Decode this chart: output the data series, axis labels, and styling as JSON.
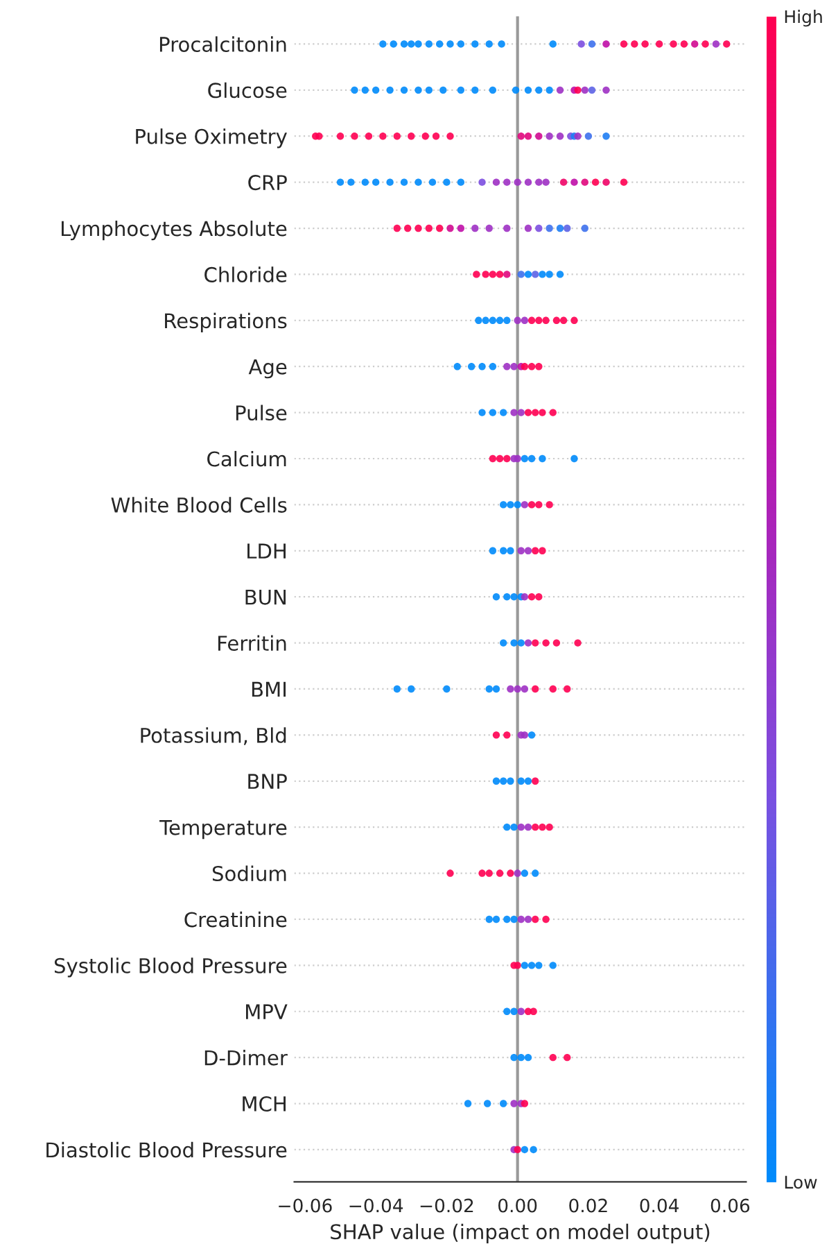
{
  "chart_data": {
    "type": "scatter",
    "orientation": "horizontal",
    "xlabel": "SHAP value (impact on model output)",
    "categories": [
      "Procalcitonin",
      "Glucose",
      "Pulse Oximetry",
      "CRP",
      "Lymphocytes Absolute",
      "Chloride",
      "Respirations",
      "Age",
      "Pulse",
      "Calcium",
      "White Blood Cells",
      "LDH",
      "BUN",
      "Ferritin",
      "BMI",
      "Potassium, Bld",
      "BNP",
      "Temperature",
      "Sodium",
      "Creatinine",
      "Systolic Blood Pressure",
      "MPV",
      "D-Dimer",
      "MCH",
      "Diastolic Blood Pressure"
    ],
    "series": [
      {
        "x": [
          "Procalcitonin",
          "Procalcitonin",
          "Procalcitonin",
          "Procalcitonin",
          "Procalcitonin",
          "Procalcitonin",
          "Procalcitonin",
          "Procalcitonin",
          "Procalcitonin",
          "Procalcitonin",
          "Procalcitonin",
          "Procalcitonin",
          "Procalcitonin",
          "Procalcitonin",
          "Procalcitonin",
          "Procalcitonin",
          "Procalcitonin",
          "Procalcitonin",
          "Procalcitonin",
          "Procalcitonin",
          "Procalcitonin",
          "Procalcitonin",
          "Procalcitonin",
          "Procalcitonin",
          "Procalcitonin",
          "Procalcitonin"
        ],
        "values": [
          -0.038,
          -0.035,
          -0.032,
          -0.03,
          -0.028,
          -0.025,
          -0.022,
          -0.019,
          -0.016,
          -0.012,
          -0.008,
          -0.0045,
          0.01,
          0.018,
          0.021,
          0.025,
          0.03,
          0.033,
          0.036,
          0.04,
          0.044,
          0.047,
          0.05,
          0.053,
          0.056,
          0.059
        ],
        "colors": [
          "#008bfb",
          "#008bfb",
          "#008bfb",
          "#008bfb",
          "#008bfb",
          "#008bfb",
          "#008bfb",
          "#008bfb",
          "#008bfb",
          "#008bfb",
          "#008bfb",
          "#008bfb",
          "#008bfb",
          "#7c4fe0",
          "#3e71ed",
          "#c010a8",
          "#ff0052",
          "#ff0052",
          "#ff0052",
          "#ff0052",
          "#ff0052",
          "#ff0052",
          "#d20b91",
          "#ff0052",
          "#9e31c4",
          "#ff0052"
        ]
      },
      {
        "x": [
          "Glucose",
          "Glucose",
          "Glucose",
          "Glucose",
          "Glucose",
          "Glucose",
          "Glucose",
          "Glucose",
          "Glucose",
          "Glucose",
          "Glucose",
          "Glucose",
          "Glucose",
          "Glucose",
          "Glucose",
          "Glucose",
          "Glucose",
          "Glucose",
          "Glucose",
          "Glucose",
          "Glucose"
        ],
        "values": [
          -0.046,
          -0.043,
          -0.04,
          -0.036,
          -0.032,
          -0.028,
          -0.025,
          -0.021,
          -0.016,
          -0.012,
          -0.007,
          -0.0005,
          0.003,
          0.006,
          0.009,
          0.012,
          0.016,
          0.017,
          0.019,
          0.021,
          0.025
        ],
        "colors": [
          "#008bfb",
          "#008bfb",
          "#008bfb",
          "#008bfb",
          "#008bfb",
          "#008bfb",
          "#008bfb",
          "#008bfb",
          "#008bfb",
          "#008bfb",
          "#008bfb",
          "#008bfb",
          "#008bfb",
          "#008bfb",
          "#008bfb",
          "#9e31c4",
          "#c010a8",
          "#ff0052",
          "#9e31c4",
          "#5d63e6",
          "#9e31c4"
        ]
      },
      {
        "x": [
          "Pulse Oximetry",
          "Pulse Oximetry",
          "Pulse Oximetry",
          "Pulse Oximetry",
          "Pulse Oximetry",
          "Pulse Oximetry",
          "Pulse Oximetry",
          "Pulse Oximetry",
          "Pulse Oximetry",
          "Pulse Oximetry",
          "Pulse Oximetry",
          "Pulse Oximetry",
          "Pulse Oximetry",
          "Pulse Oximetry",
          "Pulse Oximetry",
          "Pulse Oximetry",
          "Pulse Oximetry",
          "Pulse Oximetry",
          "Pulse Oximetry",
          "Pulse Oximetry",
          "Pulse Oximetry"
        ],
        "values": [
          -0.057,
          -0.056,
          -0.05,
          -0.046,
          -0.042,
          -0.038,
          -0.034,
          -0.03,
          -0.026,
          -0.023,
          -0.019,
          0.001,
          0.003,
          0.006,
          0.009,
          0.012,
          0.015,
          0.016,
          0.017,
          0.02,
          0.025
        ],
        "colors": [
          "#ff0052",
          "#ff0052",
          "#ff0052",
          "#ff0052",
          "#ff0052",
          "#ff0052",
          "#ff0052",
          "#ff0052",
          "#ff0052",
          "#ff0052",
          "#ff0052",
          "#e1087d",
          "#e1087d",
          "#d20b91",
          "#9e31c4",
          "#9e31c4",
          "#7c4fe0",
          "#1f7ef4",
          "#9e31c4",
          "#3e71ed",
          "#1f7ef4"
        ]
      },
      {
        "x": [
          "CRP",
          "CRP",
          "CRP",
          "CRP",
          "CRP",
          "CRP",
          "CRP",
          "CRP",
          "CRP",
          "CRP",
          "CRP",
          "CRP",
          "CRP",
          "CRP",
          "CRP",
          "CRP",
          "CRP",
          "CRP",
          "CRP",
          "CRP",
          "CRP",
          "CRP",
          "CRP"
        ],
        "values": [
          -0.05,
          -0.047,
          -0.043,
          -0.04,
          -0.036,
          -0.032,
          -0.028,
          -0.024,
          -0.02,
          -0.016,
          -0.01,
          -0.006,
          -0.003,
          0.0,
          0.003,
          0.006,
          0.008,
          0.013,
          0.016,
          0.019,
          0.022,
          0.025,
          0.03
        ],
        "colors": [
          "#008bfb",
          "#008bfb",
          "#008bfb",
          "#008bfb",
          "#008bfb",
          "#008bfb",
          "#008bfb",
          "#008bfb",
          "#008bfb",
          "#008bfb",
          "#7c4fe0",
          "#9e31c4",
          "#9e31c4",
          "#9e31c4",
          "#9e31c4",
          "#9e31c4",
          "#9e31c4",
          "#f00467",
          "#c010a8",
          "#e1087d",
          "#ff0052",
          "#f00467",
          "#ff0052"
        ]
      },
      {
        "x": [
          "Lymphocytes Absolute",
          "Lymphocytes Absolute",
          "Lymphocytes Absolute",
          "Lymphocytes Absolute",
          "Lymphocytes Absolute",
          "Lymphocytes Absolute",
          "Lymphocytes Absolute",
          "Lymphocytes Absolute",
          "Lymphocytes Absolute",
          "Lymphocytes Absolute",
          "Lymphocytes Absolute",
          "Lymphocytes Absolute",
          "Lymphocytes Absolute",
          "Lymphocytes Absolute",
          "Lymphocytes Absolute",
          "Lymphocytes Absolute"
        ],
        "values": [
          -0.034,
          -0.031,
          -0.028,
          -0.025,
          -0.022,
          -0.019,
          -0.016,
          -0.012,
          -0.008,
          -0.003,
          0.003,
          0.006,
          0.009,
          0.012,
          0.014,
          0.019
        ],
        "colors": [
          "#ff0052",
          "#ff0052",
          "#ff0052",
          "#ff0052",
          "#ff0052",
          "#d20b91",
          "#c010a8",
          "#9e31c4",
          "#9e31c4",
          "#9e31c4",
          "#9e31c4",
          "#7c4fe0",
          "#3e71ed",
          "#1f7ef4",
          "#5d63e6",
          "#3e71ed"
        ]
      },
      {
        "x": [
          "Chloride",
          "Chloride",
          "Chloride",
          "Chloride",
          "Chloride",
          "Chloride",
          "Chloride",
          "Chloride",
          "Chloride",
          "Chloride",
          "Chloride"
        ],
        "values": [
          -0.0116,
          -0.009,
          -0.007,
          -0.005,
          -0.003,
          0.001,
          0.003,
          0.005,
          0.007,
          0.009,
          0.012
        ],
        "colors": [
          "#ff0052",
          "#ff0052",
          "#ff0052",
          "#ff0052",
          "#e1087d",
          "#3e71ed",
          "#008bfb",
          "#5d63e6",
          "#008bfb",
          "#008bfb",
          "#008bfb"
        ]
      },
      {
        "x": [
          "Respirations",
          "Respirations",
          "Respirations",
          "Respirations",
          "Respirations",
          "Respirations",
          "Respirations",
          "Respirations",
          "Respirations",
          "Respirations",
          "Respirations",
          "Respirations",
          "Respirations"
        ],
        "values": [
          -0.011,
          -0.009,
          -0.007,
          -0.005,
          -0.003,
          0.0,
          0.002,
          0.004,
          0.006,
          0.008,
          0.011,
          0.013,
          0.016
        ],
        "colors": [
          "#008bfb",
          "#008bfb",
          "#008bfb",
          "#008bfb",
          "#008bfb",
          "#9e31c4",
          "#9e31c4",
          "#ff0052",
          "#ff0052",
          "#ff0052",
          "#ff0052",
          "#ff0052",
          "#ff0052"
        ]
      },
      {
        "x": [
          "Age",
          "Age",
          "Age",
          "Age",
          "Age",
          "Age",
          "Age",
          "Age",
          "Age",
          "Age"
        ],
        "values": [
          -0.017,
          -0.013,
          -0.01,
          -0.007,
          -0.003,
          -0.001,
          0.001,
          0.002,
          0.004,
          0.006
        ],
        "colors": [
          "#008bfb",
          "#008bfb",
          "#008bfb",
          "#008bfb",
          "#9e31c4",
          "#9e31c4",
          "#c010a8",
          "#ff0052",
          "#ff0052",
          "#ff0052"
        ]
      },
      {
        "x": [
          "Pulse",
          "Pulse",
          "Pulse",
          "Pulse",
          "Pulse",
          "Pulse",
          "Pulse",
          "Pulse",
          "Pulse"
        ],
        "values": [
          -0.01,
          -0.007,
          -0.004,
          -0.001,
          0.001,
          0.003,
          0.005,
          0.007,
          0.01
        ],
        "colors": [
          "#008bfb",
          "#008bfb",
          "#008bfb",
          "#9e31c4",
          "#9e31c4",
          "#ff0052",
          "#ff0052",
          "#ff0052",
          "#ff0052"
        ]
      },
      {
        "x": [
          "Calcium",
          "Calcium",
          "Calcium",
          "Calcium",
          "Calcium",
          "Calcium",
          "Calcium",
          "Calcium",
          "Calcium"
        ],
        "values": [
          -0.007,
          -0.005,
          -0.003,
          -0.001,
          0.0,
          0.002,
          0.004,
          0.007,
          0.016
        ],
        "colors": [
          "#ff0052",
          "#ff0052",
          "#ff0052",
          "#9e31c4",
          "#9e31c4",
          "#008bfb",
          "#008bfb",
          "#008bfb",
          "#008bfb"
        ]
      },
      {
        "x": [
          "White Blood Cells",
          "White Blood Cells",
          "White Blood Cells",
          "White Blood Cells",
          "White Blood Cells",
          "White Blood Cells",
          "White Blood Cells"
        ],
        "values": [
          -0.004,
          -0.002,
          0.0,
          0.002,
          0.004,
          0.006,
          0.009
        ],
        "colors": [
          "#008bfb",
          "#008bfb",
          "#008bfb",
          "#9e31c4",
          "#ff0052",
          "#ff0052",
          "#ff0052"
        ]
      },
      {
        "x": [
          "LDH",
          "LDH",
          "LDH",
          "LDH",
          "LDH",
          "LDH",
          "LDH"
        ],
        "values": [
          -0.007,
          -0.004,
          -0.002,
          0.001,
          0.003,
          0.005,
          0.007
        ],
        "colors": [
          "#008bfb",
          "#008bfb",
          "#008bfb",
          "#9e31c4",
          "#9e31c4",
          "#ff0052",
          "#ff0052"
        ]
      },
      {
        "x": [
          "BUN",
          "BUN",
          "BUN",
          "BUN",
          "BUN",
          "BUN",
          "BUN"
        ],
        "values": [
          -0.006,
          -0.003,
          -0.001,
          0.001,
          0.002,
          0.004,
          0.006
        ],
        "colors": [
          "#008bfb",
          "#008bfb",
          "#008bfb",
          "#008bfb",
          "#9e31c4",
          "#ff0052",
          "#ff0052"
        ]
      },
      {
        "x": [
          "Ferritin",
          "Ferritin",
          "Ferritin",
          "Ferritin",
          "Ferritin",
          "Ferritin",
          "Ferritin",
          "Ferritin"
        ],
        "values": [
          -0.004,
          -0.001,
          0.001,
          0.003,
          0.005,
          0.008,
          0.011,
          0.017
        ],
        "colors": [
          "#008bfb",
          "#008bfb",
          "#008bfb",
          "#9e31c4",
          "#ff0052",
          "#ff0052",
          "#ff0052",
          "#ff0052"
        ]
      },
      {
        "x": [
          "BMI",
          "BMI",
          "BMI",
          "BMI",
          "BMI",
          "BMI",
          "BMI",
          "BMI",
          "BMI",
          "BMI",
          "BMI"
        ],
        "values": [
          -0.034,
          -0.03,
          -0.02,
          -0.008,
          -0.006,
          -0.002,
          0.0,
          0.002,
          0.005,
          0.01,
          0.014
        ],
        "colors": [
          "#008bfb",
          "#008bfb",
          "#008bfb",
          "#008bfb",
          "#008bfb",
          "#9e31c4",
          "#9e31c4",
          "#9e31c4",
          "#ff0052",
          "#ff0052",
          "#ff0052"
        ]
      },
      {
        "x": [
          "Potassium, Bld",
          "Potassium, Bld",
          "Potassium, Bld",
          "Potassium, Bld",
          "Potassium, Bld"
        ],
        "values": [
          -0.006,
          -0.003,
          0.001,
          0.002,
          0.004
        ],
        "colors": [
          "#ff0052",
          "#ff0052",
          "#9e31c4",
          "#9e31c4",
          "#008bfb"
        ]
      },
      {
        "x": [
          "BNP",
          "BNP",
          "BNP",
          "BNP",
          "BNP",
          "BNP"
        ],
        "values": [
          -0.006,
          -0.004,
          -0.002,
          0.001,
          0.003,
          0.005
        ],
        "colors": [
          "#008bfb",
          "#008bfb",
          "#008bfb",
          "#008bfb",
          "#008bfb",
          "#ff0052"
        ]
      },
      {
        "x": [
          "Temperature",
          "Temperature",
          "Temperature",
          "Temperature",
          "Temperature",
          "Temperature",
          "Temperature"
        ],
        "values": [
          -0.003,
          -0.001,
          0.001,
          0.003,
          0.005,
          0.007,
          0.009
        ],
        "colors": [
          "#008bfb",
          "#008bfb",
          "#9e31c4",
          "#9e31c4",
          "#ff0052",
          "#ff0052",
          "#ff0052"
        ]
      },
      {
        "x": [
          "Sodium",
          "Sodium",
          "Sodium",
          "Sodium",
          "Sodium",
          "Sodium",
          "Sodium",
          "Sodium"
        ],
        "values": [
          -0.019,
          -0.01,
          -0.008,
          -0.005,
          -0.002,
          0.0,
          0.002,
          0.005
        ],
        "colors": [
          "#ff0052",
          "#ff0052",
          "#ff0052",
          "#ff0052",
          "#ff0052",
          "#9e31c4",
          "#008bfb",
          "#008bfb"
        ]
      },
      {
        "x": [
          "Creatinine",
          "Creatinine",
          "Creatinine",
          "Creatinine",
          "Creatinine",
          "Creatinine",
          "Creatinine",
          "Creatinine"
        ],
        "values": [
          -0.008,
          -0.006,
          -0.003,
          -0.001,
          0.001,
          0.003,
          0.005,
          0.008
        ],
        "colors": [
          "#008bfb",
          "#008bfb",
          "#008bfb",
          "#008bfb",
          "#9e31c4",
          "#9e31c4",
          "#ff0052",
          "#ff0052"
        ]
      },
      {
        "x": [
          "Systolic Blood Pressure",
          "Systolic Blood Pressure",
          "Systolic Blood Pressure",
          "Systolic Blood Pressure",
          "Systolic Blood Pressure",
          "Systolic Blood Pressure"
        ],
        "values": [
          -0.001,
          0.0,
          0.002,
          0.004,
          0.006,
          0.01
        ],
        "colors": [
          "#ff0052",
          "#ff0052",
          "#008bfb",
          "#008bfb",
          "#008bfb",
          "#008bfb"
        ]
      },
      {
        "x": [
          "MPV",
          "MPV",
          "MPV",
          "MPV",
          "MPV"
        ],
        "values": [
          -0.003,
          -0.001,
          0.001,
          0.003,
          0.0045
        ],
        "colors": [
          "#008bfb",
          "#008bfb",
          "#9e31c4",
          "#ff0052",
          "#ff0052"
        ]
      },
      {
        "x": [
          "D-Dimer",
          "D-Dimer",
          "D-Dimer",
          "D-Dimer",
          "D-Dimer"
        ],
        "values": [
          -0.001,
          0.001,
          0.003,
          0.01,
          0.014
        ],
        "colors": [
          "#008bfb",
          "#008bfb",
          "#008bfb",
          "#ff0052",
          "#ff0052"
        ]
      },
      {
        "x": [
          "MCH",
          "MCH",
          "MCH",
          "MCH",
          "MCH",
          "MCH"
        ],
        "values": [
          -0.014,
          -0.0085,
          -0.004,
          -0.001,
          0.001,
          0.002
        ],
        "colors": [
          "#008bfb",
          "#008bfb",
          "#008bfb",
          "#9e31c4",
          "#9e31c4",
          "#ff0052"
        ]
      },
      {
        "x": [
          "Diastolic Blood Pressure",
          "Diastolic Blood Pressure",
          "Diastolic Blood Pressure",
          "Diastolic Blood Pressure"
        ],
        "values": [
          -0.001,
          0.0,
          0.002,
          0.0045
        ],
        "colors": [
          "#9e31c4",
          "#ff0052",
          "#008bfb",
          "#008bfb"
        ]
      }
    ],
    "xlim": [
      -0.063,
      0.0645
    ],
    "xticks": [
      {
        "value": -0.06,
        "label": "−0.06"
      },
      {
        "value": -0.04,
        "label": "−0.04"
      },
      {
        "value": -0.02,
        "label": "−0.02"
      },
      {
        "value": 0.0,
        "label": "0.00"
      },
      {
        "value": 0.02,
        "label": "0.02"
      },
      {
        "value": 0.04,
        "label": "0.04"
      },
      {
        "value": 0.06,
        "label": "0.06"
      }
    ],
    "clim": [
      0,
      1
    ],
    "cticks": [
      {
        "value": 0,
        "label": "Low"
      },
      {
        "value": 1,
        "label": "High"
      }
    ],
    "ref_lines": [
      {
        "axis": "x",
        "value": 0,
        "color": "#999999"
      }
    ],
    "grid": "y",
    "marker": "circle"
  }
}
